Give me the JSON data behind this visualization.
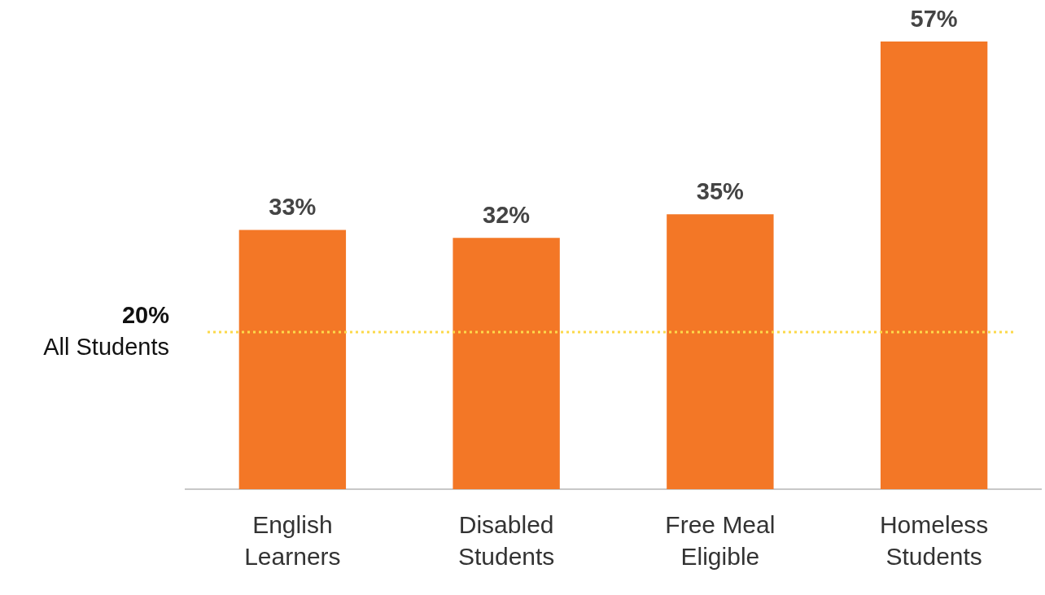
{
  "chart_data": {
    "type": "bar",
    "categories": [
      "English Learners",
      "Disabled Students",
      "Free Meal Eligible",
      "Homeless Students"
    ],
    "values": [
      33,
      32,
      35,
      57
    ],
    "color": "#f37726",
    "value_labels": [
      "33%",
      "32%",
      "35%",
      "57%"
    ],
    "tick_labels": "x",
    "grid": false,
    "legend": false,
    "ref_lines": [
      {
        "axis": "y",
        "value": 20,
        "label": "20%\nAll Students",
        "color": "#fcd94a",
        "line_style": "dotted"
      }
    ]
  }
}
